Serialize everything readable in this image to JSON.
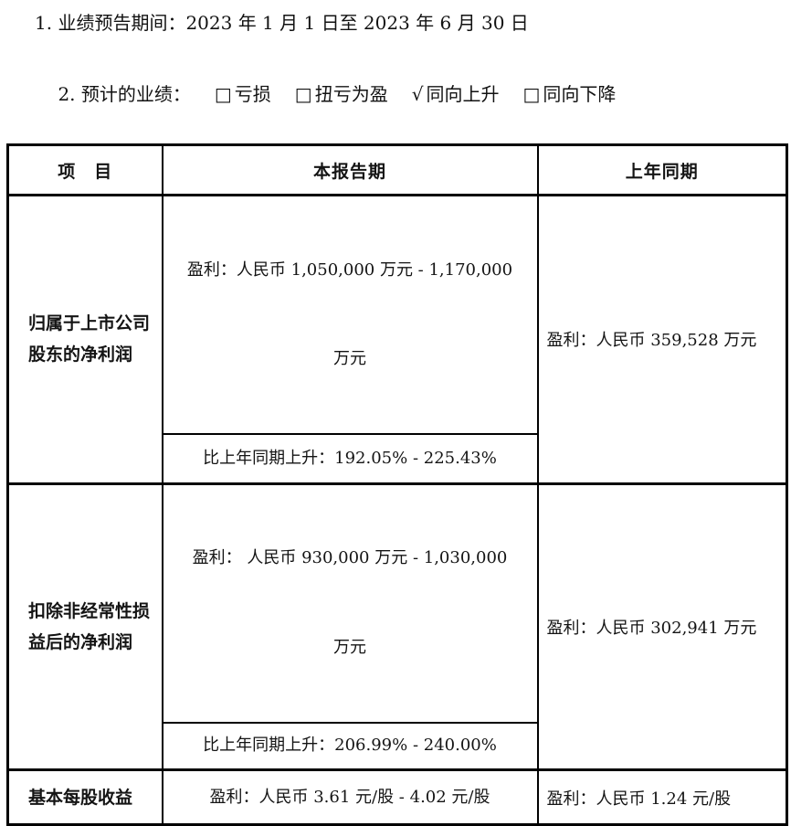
{
  "doc": {
    "line1": "1. 业绩预告期间：2023 年 1 月 1 日至 2023 年 6 月 30 日",
    "line2_label": "2. 预计的业绩：",
    "options": [
      {
        "mark": "□",
        "label": "亏损",
        "checked": false
      },
      {
        "mark": "□",
        "label": "扭亏为盈",
        "checked": false
      },
      {
        "mark": "√",
        "label": "同向上升",
        "checked": true
      },
      {
        "mark": "□",
        "label": "同向下降",
        "checked": false
      }
    ]
  },
  "table": {
    "header": {
      "item": "项　目",
      "current": "本报告期",
      "prior": "上年同期"
    },
    "rows": [
      {
        "item": "归属于上市公司股东的净利润",
        "profit_line1": "盈利：人民币 1,050,000 万元 - 1,170,000",
        "profit_line2": "万元",
        "change": "比上年同期上升：192.05% - 225.43%",
        "prior": "盈利：人民币 359,528 万元"
      },
      {
        "item": "扣除非经常性损益后的净利润",
        "profit_line1": "盈利： 人民币 930,000 万元 - 1,030,000",
        "profit_line2": "万元",
        "change": "比上年同期上升：206.99% - 240.00%",
        "prior": "盈利：人民币 302,941 万元"
      },
      {
        "item": "基本每股收益",
        "profit": "盈利：人民币 3.61 元/股 - 4.02 元/股",
        "prior": "盈利：人民币 1.24 元/股"
      }
    ]
  }
}
